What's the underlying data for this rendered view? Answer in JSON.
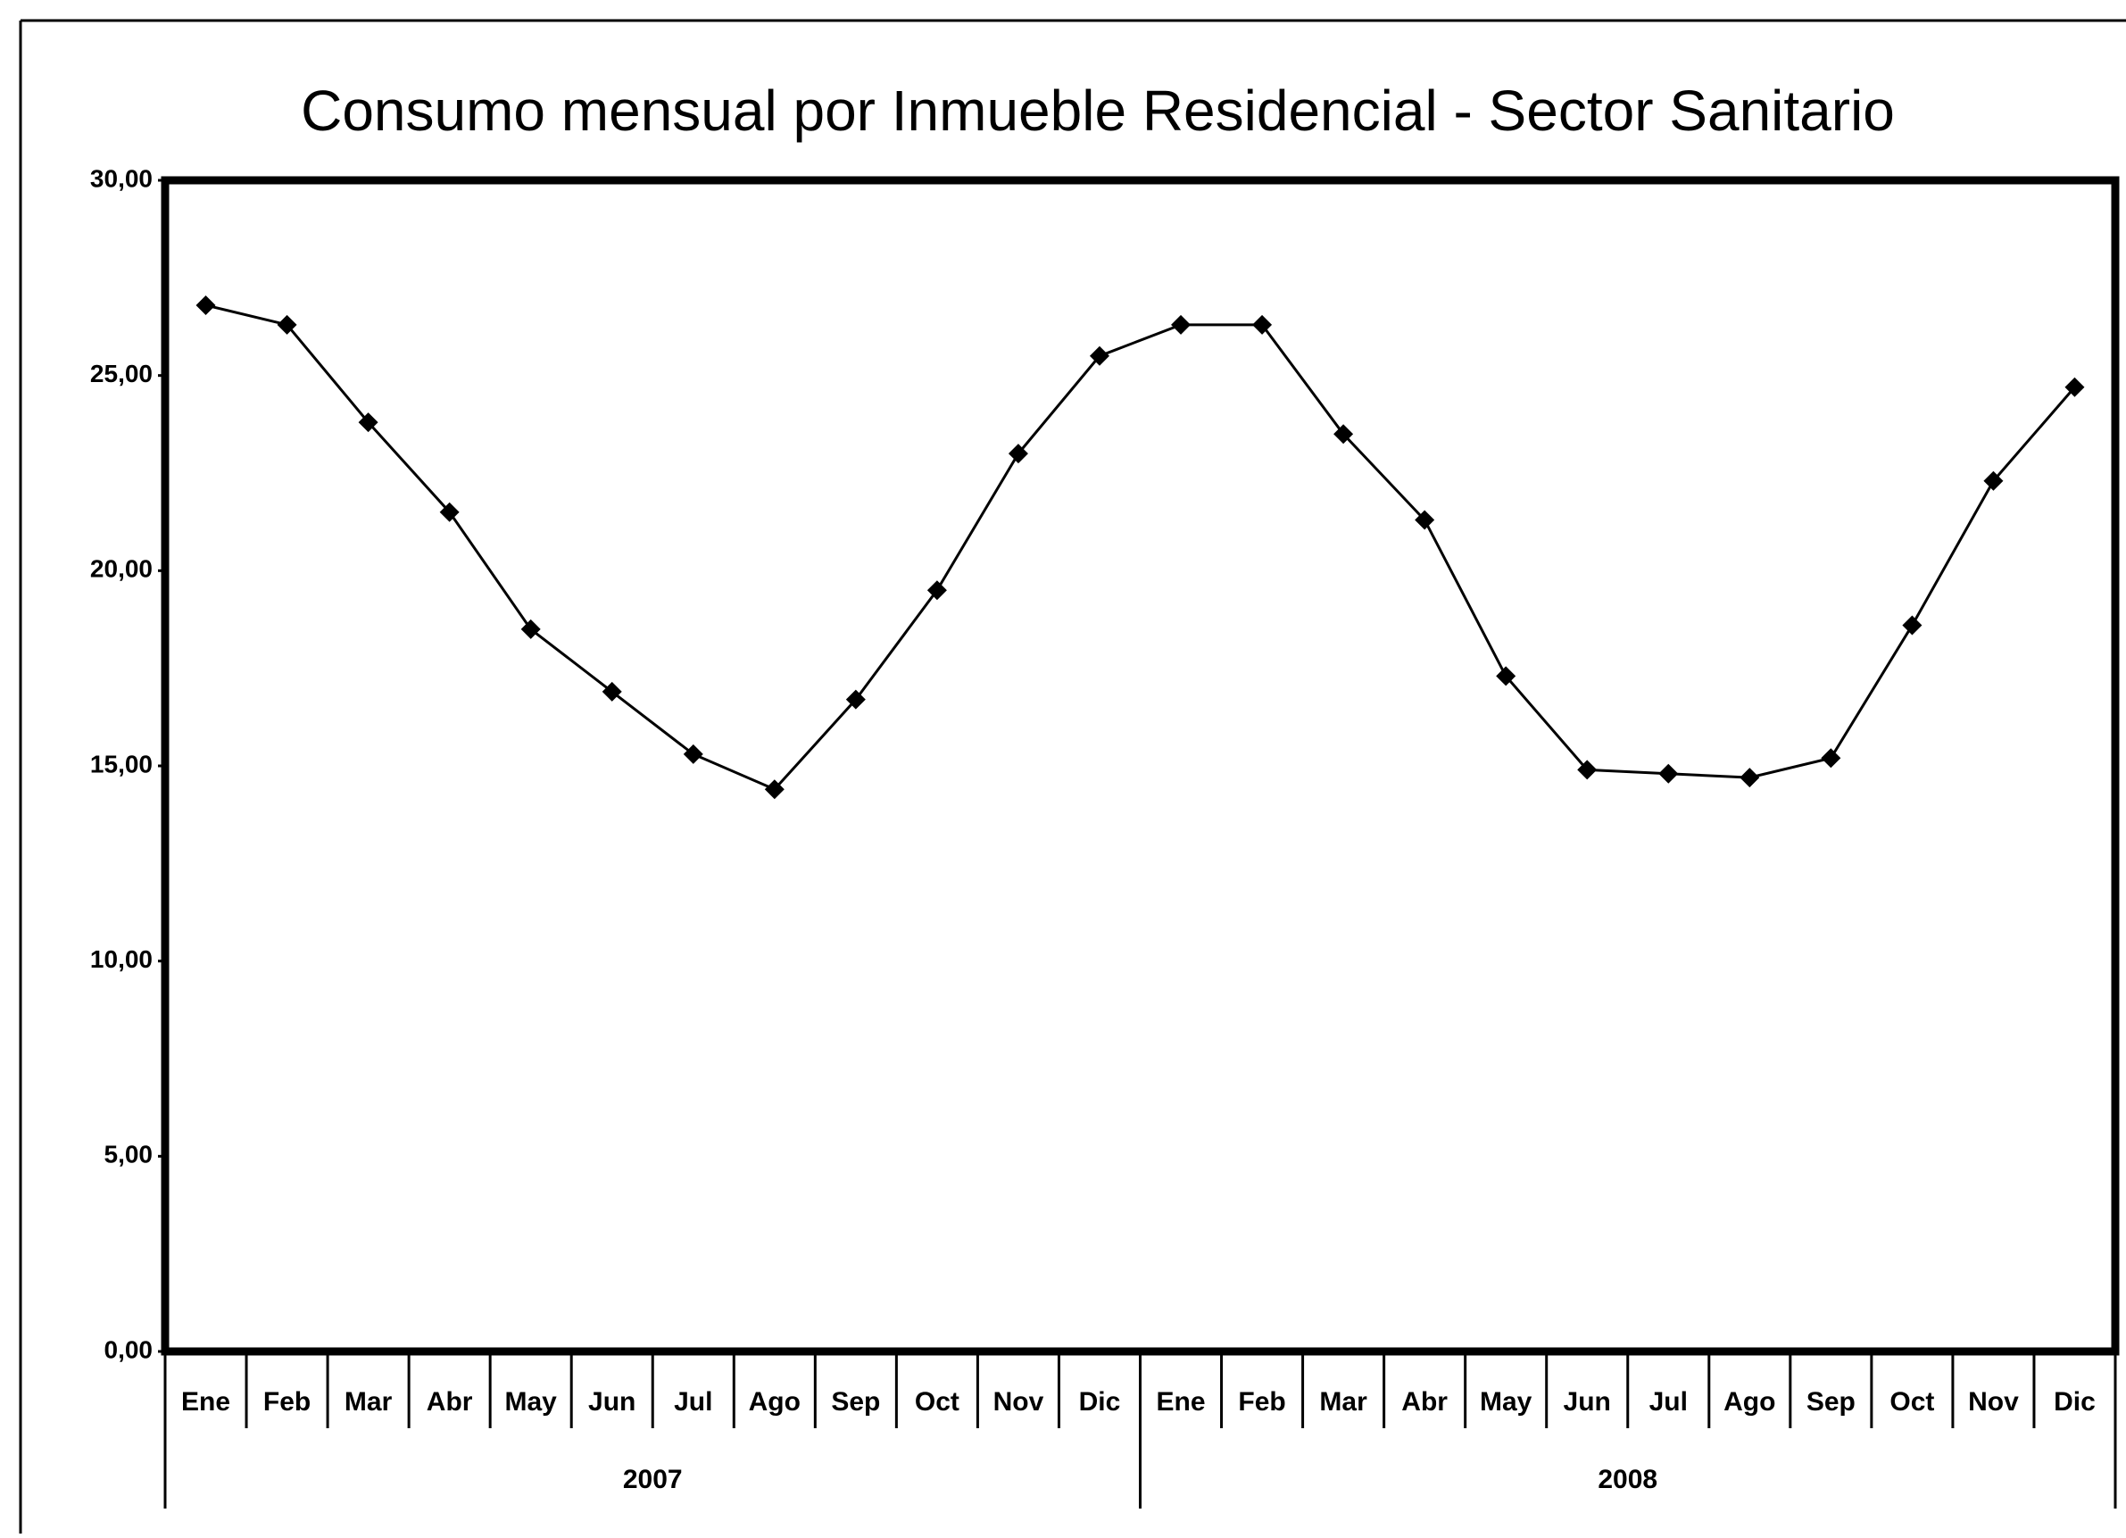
{
  "chart_data": {
    "type": "line",
    "title": "Consumo mensual por Inmueble Residencial - Sector Sanitario",
    "categories": [
      "Ene",
      "Feb",
      "Mar",
      "Abr",
      "May",
      "Jun",
      "Jul",
      "Ago",
      "Sep",
      "Oct",
      "Nov",
      "Dic",
      "Ene",
      "Feb",
      "Mar",
      "Abr",
      "May",
      "Jun",
      "Jul",
      "Ago",
      "Sep",
      "Oct",
      "Nov",
      "Dic"
    ],
    "groups": [
      "2007",
      "2008"
    ],
    "values": [
      26.8,
      26.3,
      23.8,
      21.5,
      18.5,
      16.9,
      15.3,
      14.4,
      16.7,
      19.5,
      23.0,
      25.5,
      26.3,
      26.3,
      23.5,
      21.3,
      17.3,
      14.9,
      14.8,
      14.7,
      15.2,
      18.6,
      22.3,
      24.7
    ],
    "color": "#000000",
    "ylim": [
      0,
      30
    ],
    "yticks": [
      {
        "value": 0,
        "label": "0,00"
      },
      {
        "value": 5,
        "label": "5,00"
      },
      {
        "value": 10,
        "label": "10,00"
      },
      {
        "value": 15,
        "label": "15,00"
      },
      {
        "value": 20,
        "label": "20,00"
      },
      {
        "value": 25,
        "label": "25,00"
      },
      {
        "value": 30,
        "label": "30,00"
      }
    ],
    "grid": false
  }
}
